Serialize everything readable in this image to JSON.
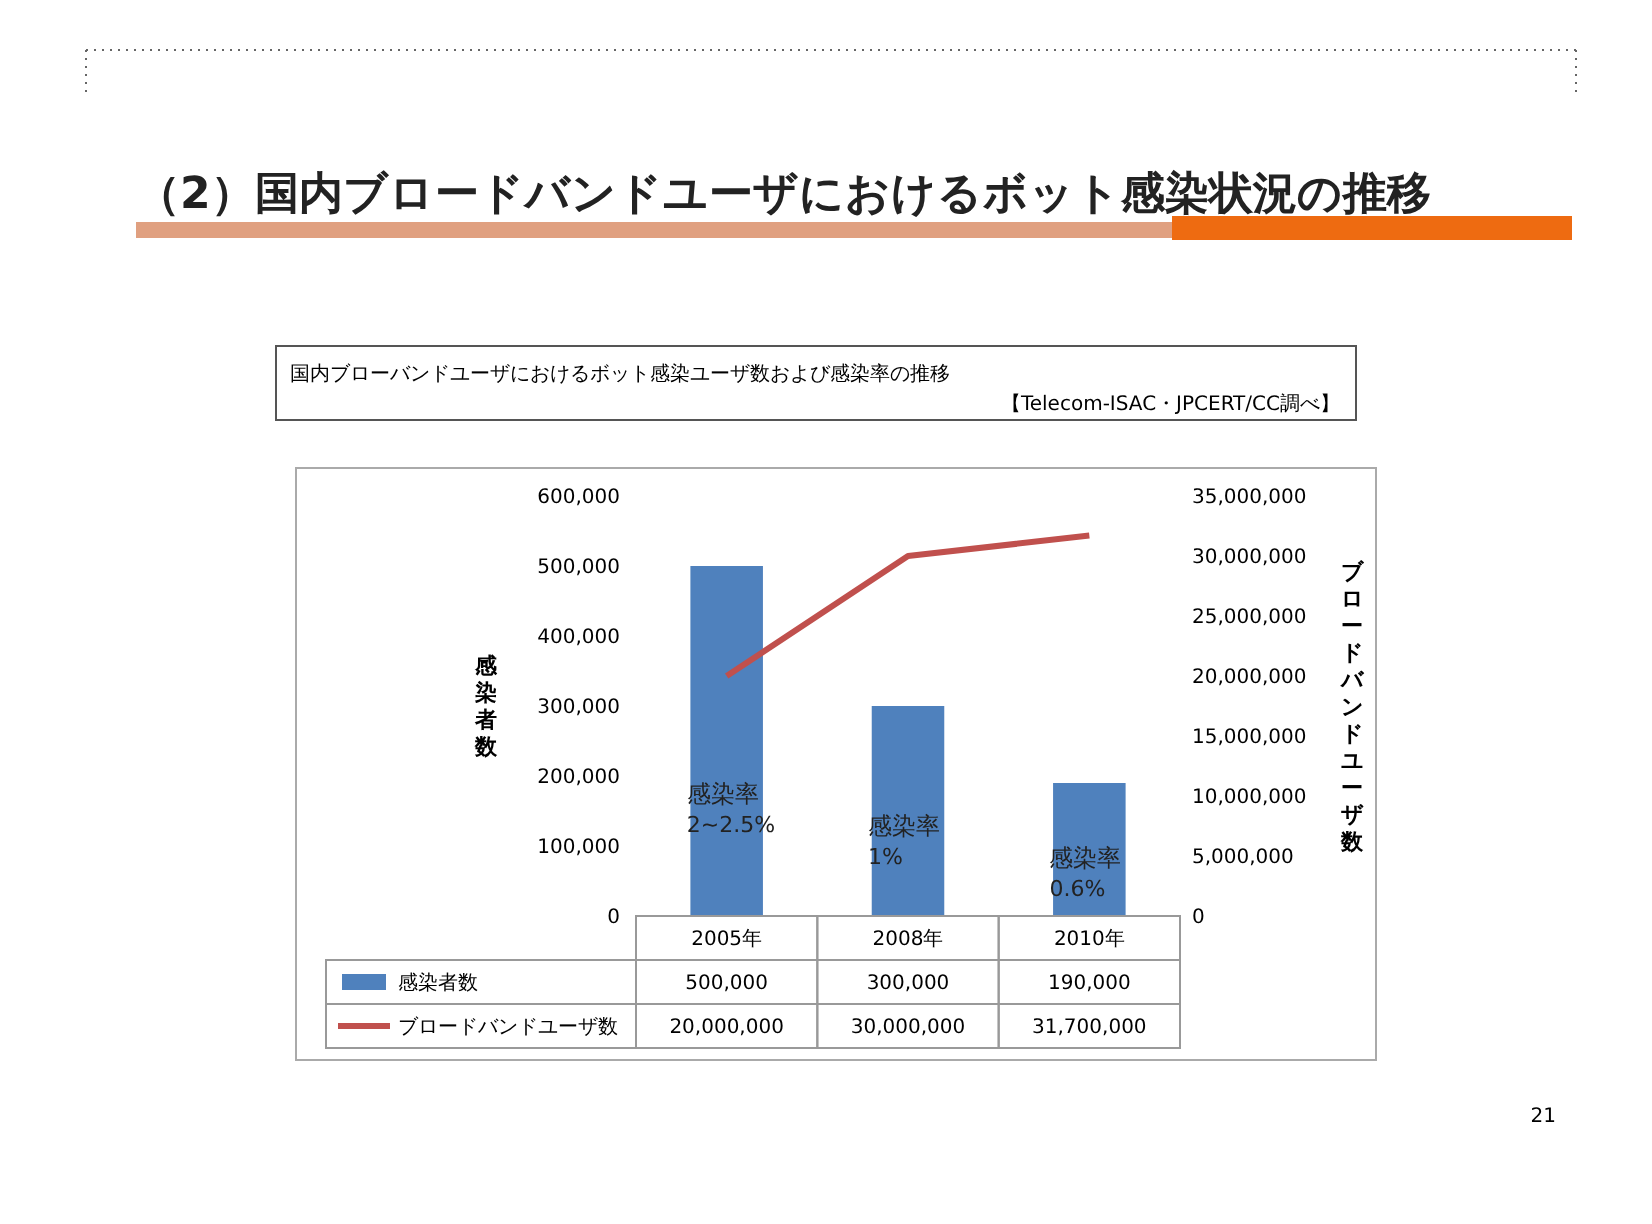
{
  "chart_data": {
    "type": "bar",
    "title": "（2）国内ブロードバンドユーザにおけるボット感染状況の推移",
    "subtitle": "国内ブローバンドユーザにおけるボット感染ユーザ数および感染率の推移",
    "ylabel": "感染者数",
    "y2label": "ブロードバンドユーザ数",
    "categories": [
      "2005年",
      "2008年",
      "2010年"
    ],
    "series": [
      {
        "name": "感染者数",
        "color": "#4f81bd",
        "values": [
          500000,
          300000,
          190000
        ],
        "value_labels": [
          "500,000",
          "300,000",
          "190,000"
        ]
      },
      {
        "name": "ブロードバンドユーザ数",
        "type": "line",
        "axis": "y2",
        "color": "#c0504d",
        "values": [
          20000000,
          30000000,
          31700000
        ],
        "value_labels": [
          "20,000,000",
          "30,000,000",
          "31,700,000"
        ]
      }
    ],
    "ylim": [
      0,
      600000
    ],
    "yticks": [
      {
        "value": 0,
        "label": "0"
      },
      {
        "value": 100000,
        "label": "100,000"
      },
      {
        "value": 200000,
        "label": "200,000"
      },
      {
        "value": 300000,
        "label": "300,000"
      },
      {
        "value": 400000,
        "label": "400,000"
      },
      {
        "value": 500000,
        "label": "500,000"
      },
      {
        "value": 600000,
        "label": "600,000"
      }
    ],
    "y2lim": [
      0,
      35000000
    ],
    "y2ticks": [
      {
        "value": 0,
        "label": "0"
      },
      {
        "value": 5000000,
        "label": "5,000,000"
      },
      {
        "value": 10000000,
        "label": "10,000,000"
      },
      {
        "value": 15000000,
        "label": "15,000,000"
      },
      {
        "value": 20000000,
        "label": "20,000,000"
      },
      {
        "value": 25000000,
        "label": "25,000,000"
      },
      {
        "value": 30000000,
        "label": "30,000,000"
      },
      {
        "value": 35000000,
        "label": "35,000,000"
      }
    ],
    "legend": "bottom",
    "marker": "none",
    "annotations": [
      "【Telecom-ISAC・JPCERT/CC調べ】",
      "感染率\n2~2.5%",
      "感染率\n1%",
      "感染率\n0.6%",
      "21"
    ]
  }
}
